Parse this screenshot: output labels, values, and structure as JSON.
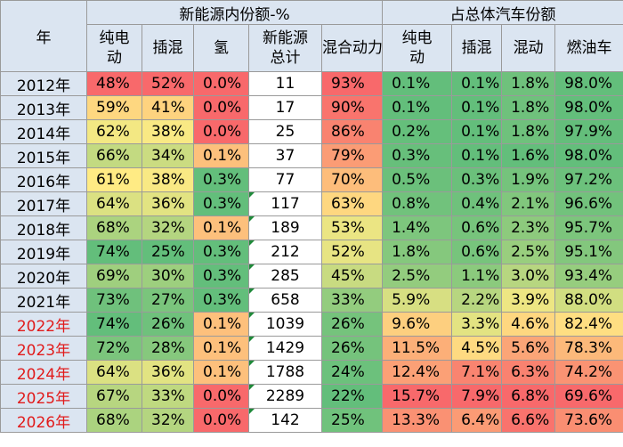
{
  "colors": {
    "bad_red": "#f8696b",
    "neutral_yellow": "#ffeb84",
    "good_green": "#63be7b",
    "header_bg": "#dbe5f1",
    "future_year_text": "#e11b1b"
  },
  "headers": {
    "year": "年",
    "group_nev": "新能源内份额-%",
    "group_total": "占总体汽车份额",
    "columns": [
      "纯电动",
      "插混",
      "氢",
      "新能源总计",
      "混合动力",
      "纯电动",
      "插混",
      "混动",
      "燃油车"
    ]
  },
  "rows": [
    {
      "year": "2012年",
      "future": false,
      "comment": false,
      "cells": [
        "48%",
        "52%",
        "0.0%",
        "11",
        "93%",
        "0.1%",
        "0.1%",
        "1.8%",
        "98.0%"
      ]
    },
    {
      "year": "2013年",
      "future": false,
      "comment": false,
      "cells": [
        "59%",
        "41%",
        "0.0%",
        "17",
        "90%",
        "0.1%",
        "0.1%",
        "1.8%",
        "98.0%"
      ]
    },
    {
      "year": "2014年",
      "future": false,
      "comment": false,
      "cells": [
        "62%",
        "38%",
        "0.0%",
        "25",
        "86%",
        "0.2%",
        "0.1%",
        "1.8%",
        "97.9%"
      ]
    },
    {
      "year": "2015年",
      "future": false,
      "comment": false,
      "cells": [
        "66%",
        "34%",
        "0.1%",
        "37",
        "79%",
        "0.3%",
        "0.1%",
        "1.6%",
        "98.0%"
      ]
    },
    {
      "year": "2016年",
      "future": false,
      "comment": false,
      "cells": [
        "61%",
        "38%",
        "0.3%",
        "77",
        "70%",
        "0.5%",
        "0.3%",
        "1.9%",
        "97.2%"
      ]
    },
    {
      "year": "2017年",
      "future": false,
      "comment": true,
      "cells": [
        "64%",
        "36%",
        "0.3%",
        "117",
        "63%",
        "0.8%",
        "0.4%",
        "2.1%",
        "96.6%"
      ]
    },
    {
      "year": "2018年",
      "future": false,
      "comment": true,
      "cells": [
        "68%",
        "32%",
        "0.1%",
        "189",
        "53%",
        "1.4%",
        "0.6%",
        "2.3%",
        "95.7%"
      ]
    },
    {
      "year": "2019年",
      "future": false,
      "comment": true,
      "cells": [
        "74%",
        "25%",
        "0.3%",
        "212",
        "52%",
        "1.8%",
        "0.6%",
        "2.5%",
        "95.1%"
      ]
    },
    {
      "year": "2020年",
      "future": false,
      "comment": true,
      "cells": [
        "69%",
        "30%",
        "0.3%",
        "285",
        "45%",
        "2.5%",
        "1.1%",
        "3.0%",
        "93.4%"
      ]
    },
    {
      "year": "2021年",
      "future": false,
      "comment": true,
      "cells": [
        "73%",
        "27%",
        "0.3%",
        "658",
        "33%",
        "5.9%",
        "2.2%",
        "3.9%",
        "88.0%"
      ]
    },
    {
      "year": "2022年",
      "future": true,
      "comment": true,
      "cells": [
        "74%",
        "26%",
        "0.1%",
        "1039",
        "26%",
        "9.6%",
        "3.3%",
        "4.6%",
        "82.4%"
      ]
    },
    {
      "year": "2023年",
      "future": true,
      "comment": true,
      "cells": [
        "72%",
        "28%",
        "0.1%",
        "1429",
        "26%",
        "11.5%",
        "4.5%",
        "5.6%",
        "78.3%"
      ]
    },
    {
      "year": "2024年",
      "future": true,
      "comment": true,
      "cells": [
        "64%",
        "36%",
        "0.1%",
        "1788",
        "24%",
        "12.4%",
        "7.1%",
        "6.3%",
        "74.2%"
      ]
    },
    {
      "year": "2025年",
      "future": true,
      "comment": true,
      "cells": [
        "67%",
        "33%",
        "0.0%",
        "2289",
        "22%",
        "15.7%",
        "7.9%",
        "6.8%",
        "69.6%"
      ]
    },
    {
      "year": "2026年",
      "future": true,
      "comment": true,
      "cells": [
        "68%",
        "32%",
        "0.0%",
        "142",
        "25%",
        "13.3%",
        "6.4%",
        "6.6%",
        "73.6%"
      ]
    }
  ]
}
